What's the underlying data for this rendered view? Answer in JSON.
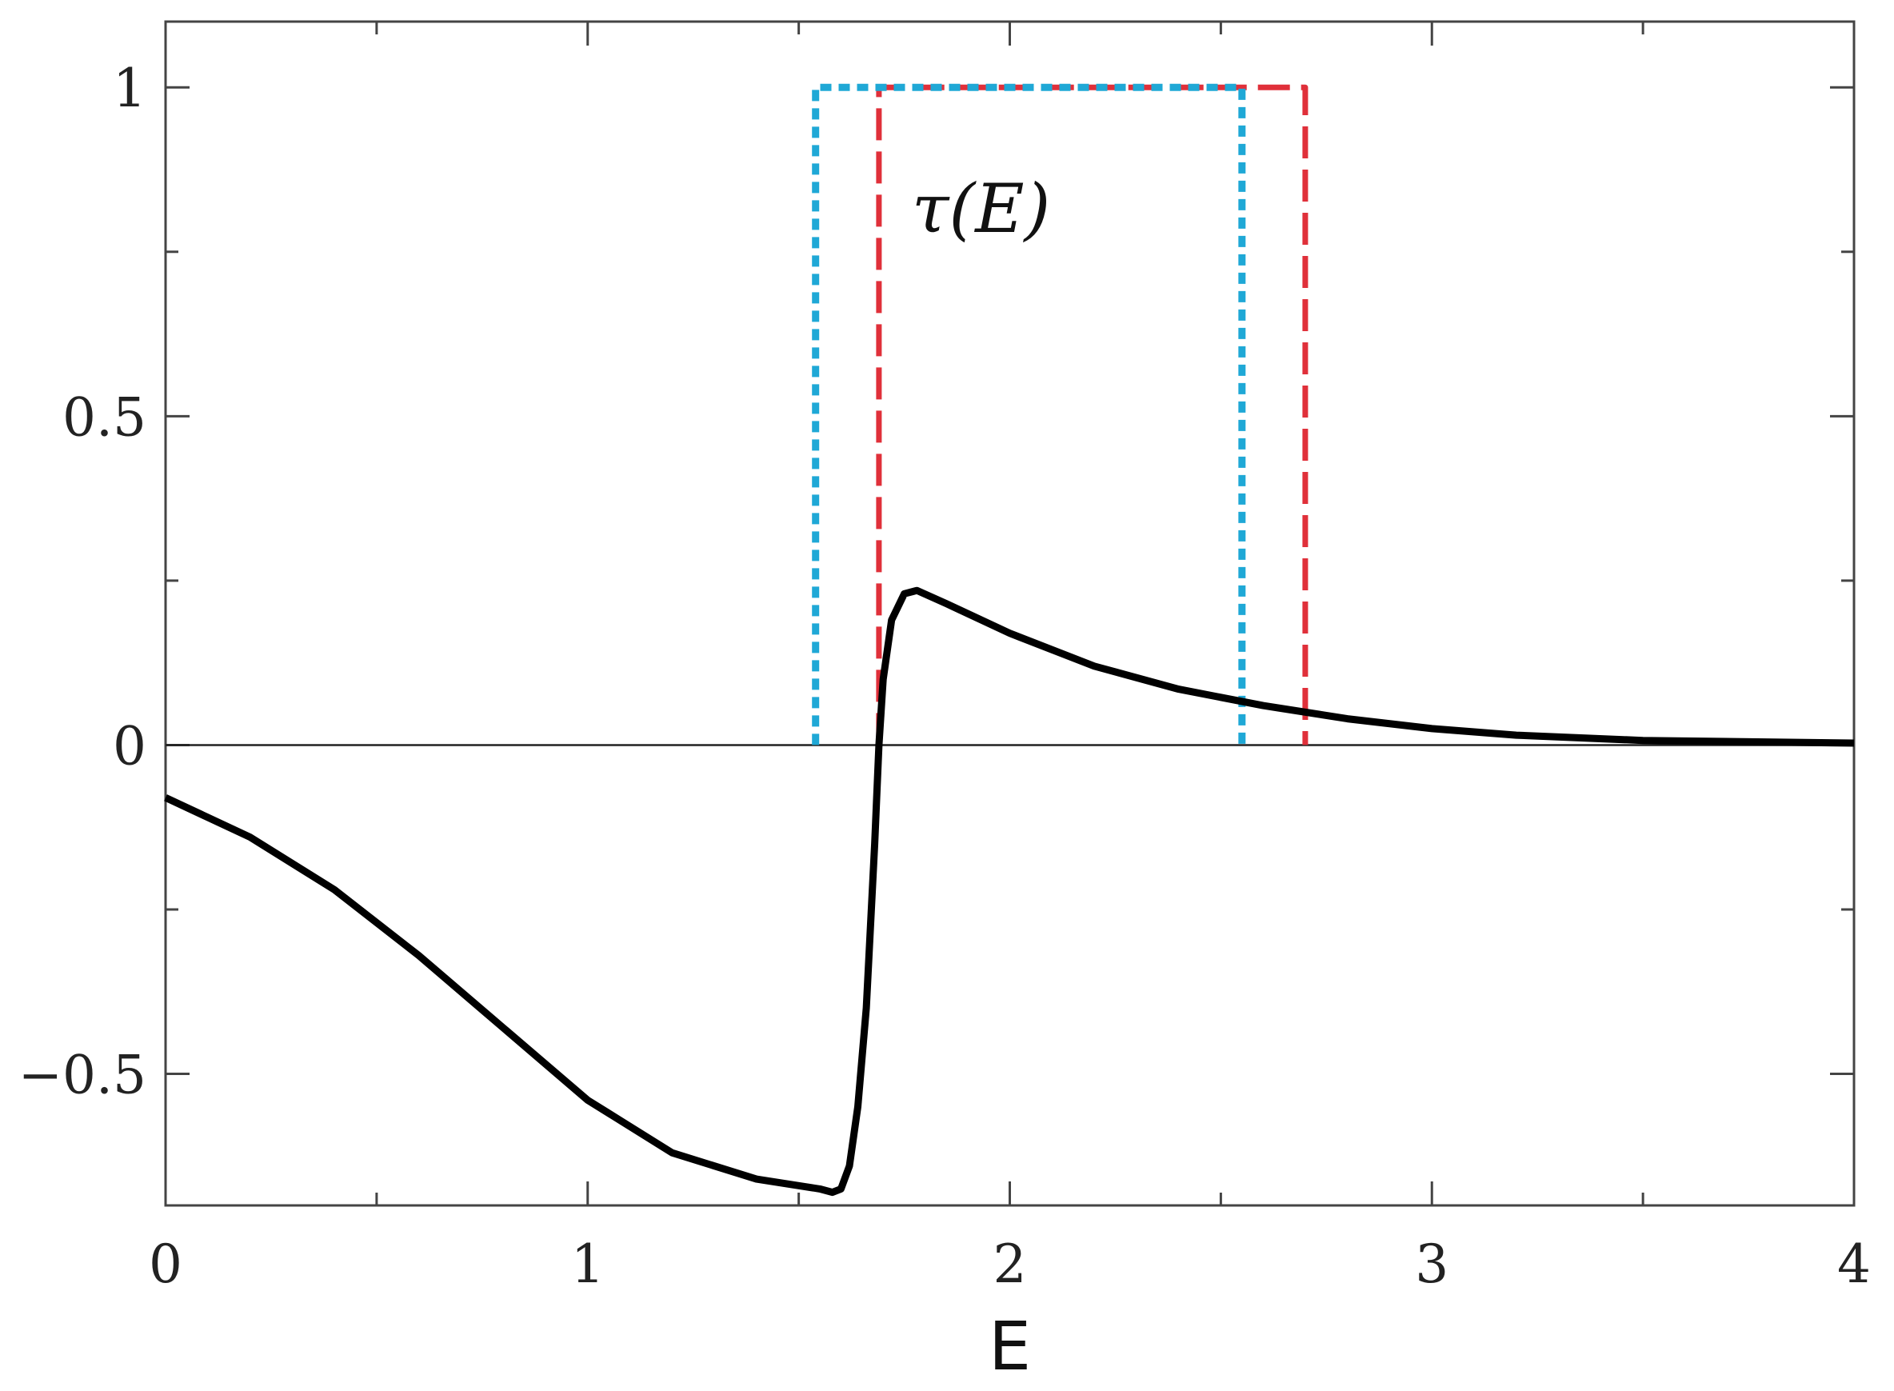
{
  "chart_data": {
    "type": "line",
    "xlabel": "E",
    "ylabel": "",
    "xlim": [
      0,
      4
    ],
    "ylim": [
      -0.7,
      1.1
    ],
    "x_ticks": [
      0,
      1,
      2,
      3,
      4
    ],
    "x_tick_labels": [
      "0",
      "1",
      "2",
      "3",
      "4"
    ],
    "y_ticks": [
      -0.5,
      0,
      0.5,
      1
    ],
    "y_tick_labels": [
      "−0.5",
      "0",
      "0.5",
      "1"
    ],
    "annotation": "τ(E)",
    "colors": {
      "curve": "#000000",
      "red": "#e0303a",
      "cyan": "#1fa8d6"
    },
    "series": [
      {
        "style": "solid-black",
        "x": [
          0,
          0.2,
          0.4,
          0.6,
          0.8,
          1.0,
          1.2,
          1.4,
          1.5,
          1.55,
          1.58,
          1.6,
          1.62,
          1.64,
          1.66,
          1.68,
          1.69,
          1.7,
          1.72,
          1.75,
          1.78,
          1.85,
          2.0,
          2.2,
          2.4,
          2.6,
          2.8,
          3.0,
          3.2,
          3.5,
          4.0
        ],
        "y": [
          -0.08,
          -0.14,
          -0.22,
          -0.32,
          -0.43,
          -0.54,
          -0.62,
          -0.66,
          -0.67,
          -0.675,
          -0.68,
          -0.675,
          -0.64,
          -0.55,
          -0.4,
          -0.15,
          0.0,
          0.1,
          0.19,
          0.23,
          0.235,
          0.215,
          0.17,
          0.12,
          0.085,
          0.06,
          0.04,
          0.025,
          0.015,
          0.007,
          0.003
        ]
      },
      {
        "style": "dashed-red",
        "x": [
          1.69,
          1.69,
          2.7,
          2.7
        ],
        "y": [
          0,
          1,
          1,
          0
        ]
      },
      {
        "style": "dotted-cyan",
        "x": [
          1.54,
          1.54,
          2.55,
          2.55
        ],
        "y": [
          0,
          1,
          1,
          0
        ]
      }
    ]
  }
}
